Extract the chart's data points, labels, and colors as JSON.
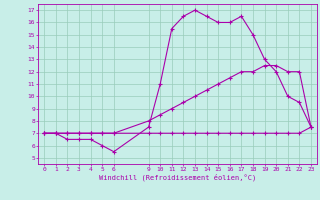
{
  "xlabel": "Windchill (Refroidissement éolien,°C)",
  "bg_color": "#c8eee8",
  "line_color": "#aa00aa",
  "grid_color": "#99ccbb",
  "ylim": [
    4.5,
    17.5
  ],
  "yticks": [
    5,
    6,
    7,
    8,
    9,
    10,
    11,
    12,
    13,
    14,
    15,
    16,
    17
  ],
  "x_vals": [
    0,
    1,
    2,
    3,
    4,
    5,
    6,
    9,
    10,
    11,
    12,
    13,
    14,
    15,
    16,
    17,
    18,
    19,
    20,
    21,
    22,
    23
  ],
  "xtick_positions": [
    0,
    1,
    2,
    3,
    4,
    5,
    6,
    9,
    10,
    11,
    12,
    13,
    14,
    15,
    16,
    17,
    18,
    19,
    20,
    21,
    22,
    23
  ],
  "xlim": [
    -0.5,
    23.5
  ],
  "line1_y": [
    7.0,
    7.0,
    6.5,
    6.5,
    6.5,
    6.0,
    5.5,
    7.5,
    11.0,
    15.5,
    16.5,
    17.0,
    16.5,
    16.0,
    16.0,
    16.5,
    15.0,
    13.0,
    12.0,
    10.0,
    9.5,
    7.5
  ],
  "line2_y": [
    7.0,
    7.0,
    7.0,
    7.0,
    7.0,
    7.0,
    7.0,
    8.0,
    8.5,
    9.0,
    9.5,
    10.0,
    10.5,
    11.0,
    11.5,
    12.0,
    12.0,
    12.5,
    12.5,
    12.0,
    12.0,
    7.5
  ],
  "line3_y": [
    7.0,
    7.0,
    7.0,
    7.0,
    7.0,
    7.0,
    7.0,
    7.0,
    7.0,
    7.0,
    7.0,
    7.0,
    7.0,
    7.0,
    7.0,
    7.0,
    7.0,
    7.0,
    7.0,
    7.0,
    7.0,
    7.5
  ],
  "xlabel_fontsize": 5,
  "tick_fontsize": 4.5
}
